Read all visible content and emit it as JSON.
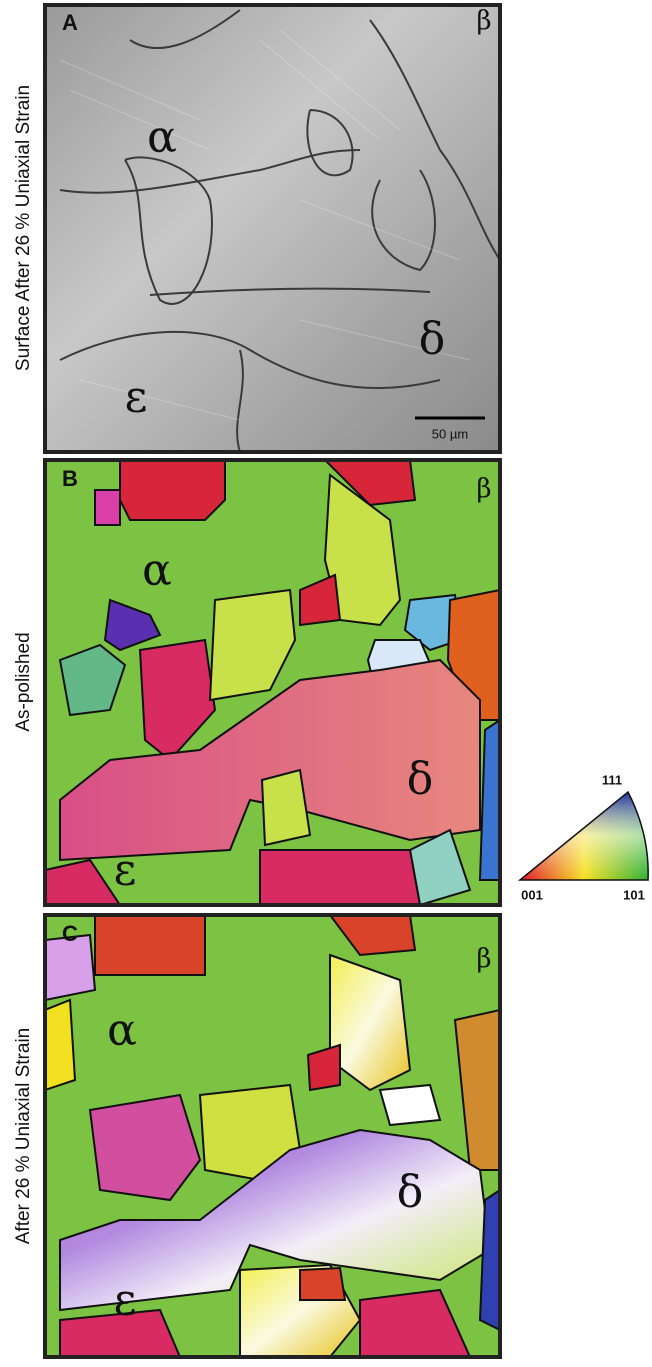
{
  "panels": [
    {
      "label": "A",
      "side_label": "Surface After 26 % Uniaxial Strain",
      "grains": [
        "α",
        "β",
        "δ",
        "ε"
      ],
      "scale_bar": "50 µm"
    },
    {
      "label": "B",
      "side_label": "As-polished",
      "grains": [
        "α",
        "β",
        "δ",
        "ε"
      ]
    },
    {
      "label": "C",
      "side_label": "After 26 % Uniaxial Strain",
      "grains": [
        "α",
        "β",
        "δ",
        "ε"
      ]
    }
  ],
  "legend": {
    "top": "111",
    "left": "001",
    "right": "101"
  }
}
